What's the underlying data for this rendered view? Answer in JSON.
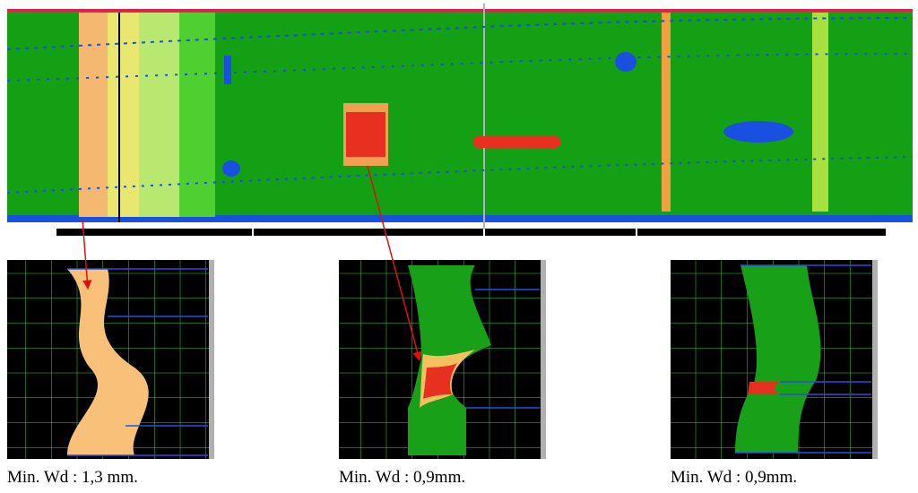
{
  "panels": [
    {
      "caption": "Min. Wd : 1,3 mm."
    },
    {
      "caption": "Min. Wd : 0,9mm."
    },
    {
      "caption": "Min. Wd : 0,9mm."
    }
  ]
}
